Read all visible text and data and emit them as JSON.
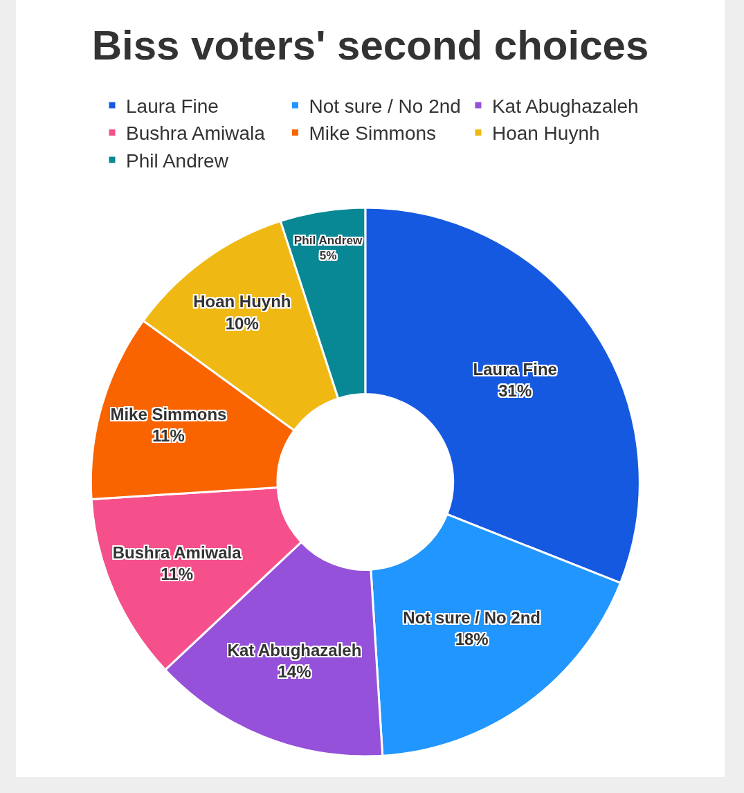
{
  "chart_data": {
    "type": "donut",
    "title": "Biss voters' second choices",
    "categories": [
      "Laura Fine",
      "Not sure / No 2nd",
      "Kat Abughazaleh",
      "Bushra Amiwala",
      "Mike Simmons",
      "Hoan Huynh",
      "Phil Andrew"
    ],
    "values": [
      31,
      18,
      14,
      11,
      11,
      10,
      5
    ],
    "value_labels": [
      "31%",
      "18%",
      "14%",
      "11%",
      "11%",
      "10%",
      "5%"
    ],
    "colors": [
      "#1559e0",
      "#2196ff",
      "#9551d9",
      "#f5508b",
      "#f96400",
      "#f0b813",
      "#088795"
    ],
    "legend": "top"
  }
}
